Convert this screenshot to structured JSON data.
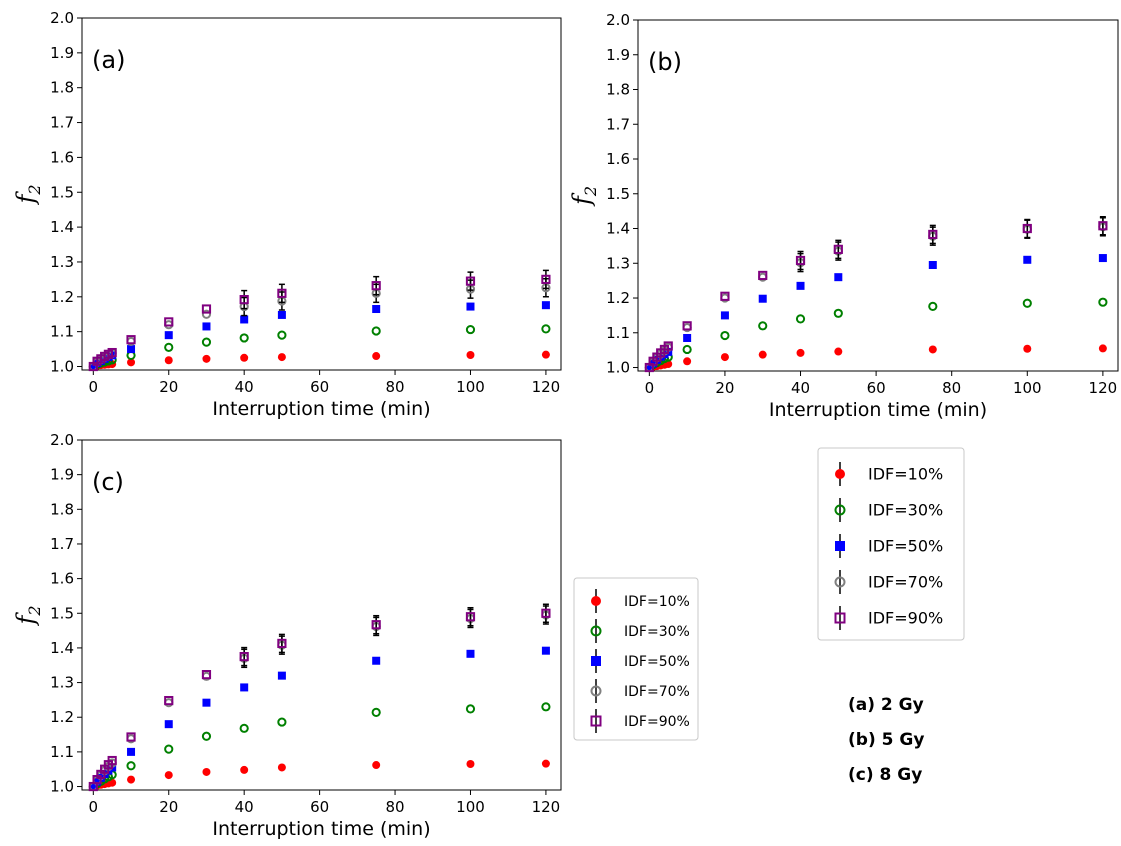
{
  "chart_data": [
    {
      "type": "scatter",
      "panel_label": "(a)",
      "xlabel": "Interruption time (min)",
      "ylabel": "f",
      "ylabel_sub": "2",
      "xlim": [
        -3,
        124
      ],
      "ylim": [
        0.99,
        2.0
      ],
      "xticks": [
        0,
        20,
        40,
        60,
        80,
        100,
        120
      ],
      "yticks": [
        1.0,
        1.1,
        1.2,
        1.3,
        1.4,
        1.5,
        1.6,
        1.7,
        1.8,
        1.9,
        2.0
      ],
      "x": [
        0,
        0.5,
        1,
        2,
        3,
        4,
        5,
        10,
        20,
        30,
        40,
        50,
        75,
        100,
        120
      ],
      "series": [
        {
          "name": "IDF=10%",
          "values": [
            1.0,
            1.001,
            1.002,
            1.004,
            1.005,
            1.006,
            1.007,
            1.012,
            1.018,
            1.022,
            1.025,
            1.027,
            1.03,
            1.033,
            1.034
          ]
        },
        {
          "name": "IDF=30%",
          "values": [
            1.0,
            1.003,
            1.006,
            1.01,
            1.013,
            1.016,
            1.019,
            1.032,
            1.055,
            1.07,
            1.082,
            1.09,
            1.102,
            1.106,
            1.108
          ]
        },
        {
          "name": "IDF=50%",
          "values": [
            1.0,
            1.005,
            1.01,
            1.016,
            1.022,
            1.027,
            1.032,
            1.05,
            1.09,
            1.115,
            1.135,
            1.148,
            1.165,
            1.172,
            1.176
          ]
        },
        {
          "name": "IDF=70%",
          "values": [
            1.0,
            1.007,
            1.013,
            1.02,
            1.027,
            1.033,
            1.038,
            1.072,
            1.12,
            1.15,
            1.172,
            1.188,
            1.21,
            1.222,
            1.226
          ]
        },
        {
          "name": "IDF=90%",
          "values": [
            1.0,
            1.008,
            1.015,
            1.022,
            1.029,
            1.035,
            1.04,
            1.077,
            1.128,
            1.165,
            1.192,
            1.21,
            1.232,
            1.245,
            1.25
          ]
        }
      ]
    },
    {
      "type": "scatter",
      "panel_label": "(b)",
      "xlabel": "Interruption time (min)",
      "ylabel": "f",
      "ylabel_sub": "2",
      "xlim": [
        -3,
        124
      ],
      "ylim": [
        0.99,
        2.0
      ],
      "xticks": [
        0,
        20,
        40,
        60,
        80,
        100,
        120
      ],
      "yticks": [
        1.0,
        1.1,
        1.2,
        1.3,
        1.4,
        1.5,
        1.6,
        1.7,
        1.8,
        1.9,
        2.0
      ],
      "x": [
        0,
        0.5,
        1,
        2,
        3,
        4,
        5,
        10,
        20,
        30,
        40,
        50,
        75,
        100,
        120
      ],
      "series": [
        {
          "name": "IDF=10%",
          "values": [
            1.0,
            1.001,
            1.002,
            1.004,
            1.006,
            1.008,
            1.01,
            1.018,
            1.03,
            1.037,
            1.042,
            1.046,
            1.052,
            1.054,
            1.055
          ]
        },
        {
          "name": "IDF=30%",
          "values": [
            1.0,
            1.004,
            1.008,
            1.014,
            1.02,
            1.026,
            1.03,
            1.052,
            1.092,
            1.12,
            1.14,
            1.156,
            1.176,
            1.185,
            1.188
          ]
        },
        {
          "name": "IDF=50%",
          "values": [
            1.0,
            1.006,
            1.012,
            1.022,
            1.031,
            1.038,
            1.045,
            1.085,
            1.15,
            1.198,
            1.235,
            1.26,
            1.295,
            1.31,
            1.315
          ]
        },
        {
          "name": "IDF=70%",
          "values": [
            1.0,
            1.008,
            1.016,
            1.028,
            1.039,
            1.048,
            1.058,
            1.115,
            1.2,
            1.26,
            1.302,
            1.335,
            1.378,
            1.398,
            1.405
          ]
        },
        {
          "name": "IDF=90%",
          "values": [
            1.0,
            1.009,
            1.018,
            1.03,
            1.042,
            1.052,
            1.062,
            1.12,
            1.205,
            1.265,
            1.308,
            1.34,
            1.383,
            1.4,
            1.408
          ]
        }
      ]
    },
    {
      "type": "scatter",
      "panel_label": "(c)",
      "xlabel": "Interruption time (min)",
      "ylabel": "f",
      "ylabel_sub": "2",
      "xlim": [
        -3,
        124
      ],
      "ylim": [
        0.99,
        2.0
      ],
      "xticks": [
        0,
        20,
        40,
        60,
        80,
        100,
        120
      ],
      "yticks": [
        1.0,
        1.1,
        1.2,
        1.3,
        1.4,
        1.5,
        1.6,
        1.7,
        1.8,
        1.9,
        2.0
      ],
      "x": [
        0,
        0.5,
        1,
        2,
        3,
        4,
        5,
        10,
        20,
        30,
        40,
        50,
        75,
        100,
        120
      ],
      "series": [
        {
          "name": "IDF=10%",
          "values": [
            1.0,
            1.002,
            1.003,
            1.005,
            1.007,
            1.009,
            1.011,
            1.02,
            1.033,
            1.042,
            1.048,
            1.055,
            1.062,
            1.065,
            1.066
          ]
        },
        {
          "name": "IDF=30%",
          "values": [
            1.0,
            1.004,
            1.008,
            1.015,
            1.022,
            1.028,
            1.034,
            1.06,
            1.108,
            1.145,
            1.168,
            1.186,
            1.214,
            1.224,
            1.23
          ]
        },
        {
          "name": "IDF=50%",
          "values": [
            1.0,
            1.007,
            1.014,
            1.025,
            1.036,
            1.046,
            1.055,
            1.1,
            1.18,
            1.242,
            1.286,
            1.32,
            1.363,
            1.383,
            1.392
          ]
        },
        {
          "name": "IDF=70%",
          "values": [
            1.0,
            1.009,
            1.018,
            1.032,
            1.046,
            1.058,
            1.068,
            1.138,
            1.242,
            1.318,
            1.37,
            1.408,
            1.462,
            1.485,
            1.495
          ]
        },
        {
          "name": "IDF=90%",
          "values": [
            1.0,
            1.01,
            1.02,
            1.035,
            1.05,
            1.063,
            1.075,
            1.143,
            1.248,
            1.323,
            1.375,
            1.413,
            1.467,
            1.49,
            1.5
          ]
        }
      ]
    }
  ],
  "legend_entries": [
    "IDF=10%",
    "IDF=30%",
    "IDF=50%",
    "IDF=70%",
    "IDF=90%"
  ],
  "series_style": [
    {
      "marker": "circle-filled",
      "color": "#ff0000"
    },
    {
      "marker": "circle-open",
      "color": "#008000"
    },
    {
      "marker": "square-filled",
      "color": "#0000ff"
    },
    {
      "marker": "circle-open",
      "color": "#808080"
    },
    {
      "marker": "square-open",
      "color": "#800080"
    }
  ],
  "dose_notes": [
    {
      "tag": "(a)",
      "text": "2 Gy"
    },
    {
      "tag": "(b)",
      "text": "5 Gy"
    },
    {
      "tag": "(c)",
      "text": "8 Gy"
    }
  ]
}
